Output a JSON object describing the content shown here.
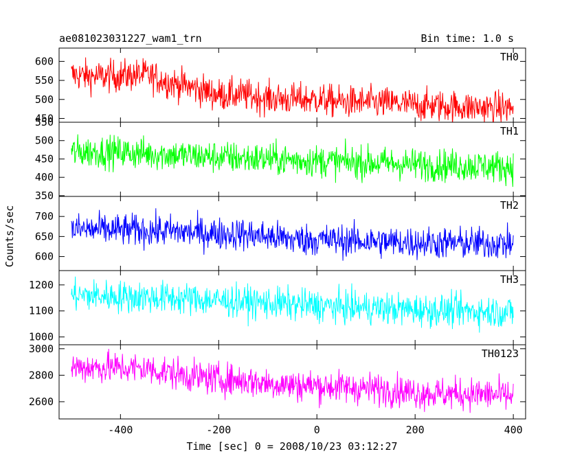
{
  "chart_data": {
    "type": "line",
    "title": "ae081023031227_wam1_trn",
    "subtitle": "Bin time: 1.0 s",
    "xlabel": "Time [sec] 0 = 2008/10/23 03:12:27",
    "ylabel": "Counts/sec",
    "xlim": [
      -525,
      425
    ],
    "xticks": [
      -400,
      -200,
      0,
      200,
      400
    ],
    "x_range": [
      -500,
      400
    ],
    "bin_time": 1.0,
    "grid": false,
    "panels": [
      {
        "name": "TH0",
        "color": "#ff0000",
        "ylim": [
          440,
          635
        ],
        "yticks": [
          450,
          500,
          550,
          600
        ],
        "x": [
          -500,
          -450,
          -400,
          -350,
          -300,
          -250,
          -200,
          -150,
          -100,
          -50,
          0,
          50,
          100,
          150,
          200,
          250,
          300,
          350,
          400
        ],
        "values": [
          565,
          560,
          562,
          565,
          545,
          530,
          512,
          512,
          503,
          500,
          500,
          493,
          492,
          490,
          485,
          483,
          480,
          478,
          478
        ]
      },
      {
        "name": "TH1",
        "color": "#00ff00",
        "ylim": [
          348,
          550
        ],
        "yticks": [
          350,
          400,
          450,
          500,
          550
        ],
        "x": [
          -500,
          -450,
          -400,
          -350,
          -300,
          -250,
          -200,
          -150,
          -100,
          -50,
          0,
          50,
          100,
          150,
          200,
          250,
          300,
          350,
          400
        ],
        "values": [
          468,
          470,
          468,
          465,
          462,
          458,
          455,
          452,
          450,
          447,
          445,
          442,
          440,
          438,
          435,
          433,
          432,
          430,
          428
        ]
      },
      {
        "name": "TH2",
        "color": "#0000ff",
        "ylim": [
          565,
          750
        ],
        "yticks": [
          600,
          650,
          700
        ],
        "x": [
          -500,
          -450,
          -400,
          -350,
          -300,
          -250,
          -200,
          -150,
          -100,
          -50,
          0,
          50,
          100,
          150,
          200,
          250,
          300,
          350,
          400
        ],
        "values": [
          668,
          667,
          666,
          665,
          663,
          660,
          657,
          656,
          650,
          643,
          642,
          640,
          638,
          636,
          635,
          634,
          633,
          633,
          632
        ]
      },
      {
        "name": "TH3",
        "color": "#00ffff",
        "ylim": [
          970,
          1255
        ],
        "yticks": [
          1000,
          1100,
          1200
        ],
        "x": [
          -500,
          -450,
          -400,
          -350,
          -300,
          -250,
          -200,
          -150,
          -100,
          -50,
          0,
          50,
          100,
          150,
          200,
          250,
          300,
          350,
          400
        ],
        "values": [
          1160,
          1158,
          1155,
          1152,
          1150,
          1145,
          1140,
          1135,
          1130,
          1125,
          1120,
          1115,
          1112,
          1108,
          1105,
          1102,
          1100,
          1098,
          1095
        ]
      },
      {
        "name": "TH0123",
        "color": "#ff00ff",
        "ylim": [
          2470,
          3030
        ],
        "yticks": [
          2600,
          2800,
          3000
        ],
        "x": [
          -500,
          -450,
          -400,
          -350,
          -300,
          -250,
          -200,
          -150,
          -100,
          -50,
          0,
          50,
          100,
          150,
          200,
          250,
          300,
          350,
          400
        ],
        "values": [
          2860,
          2860,
          2855,
          2850,
          2820,
          2790,
          2770,
          2760,
          2740,
          2725,
          2720,
          2710,
          2700,
          2690,
          2670,
          2660,
          2660,
          2655,
          2640
        ]
      }
    ]
  }
}
